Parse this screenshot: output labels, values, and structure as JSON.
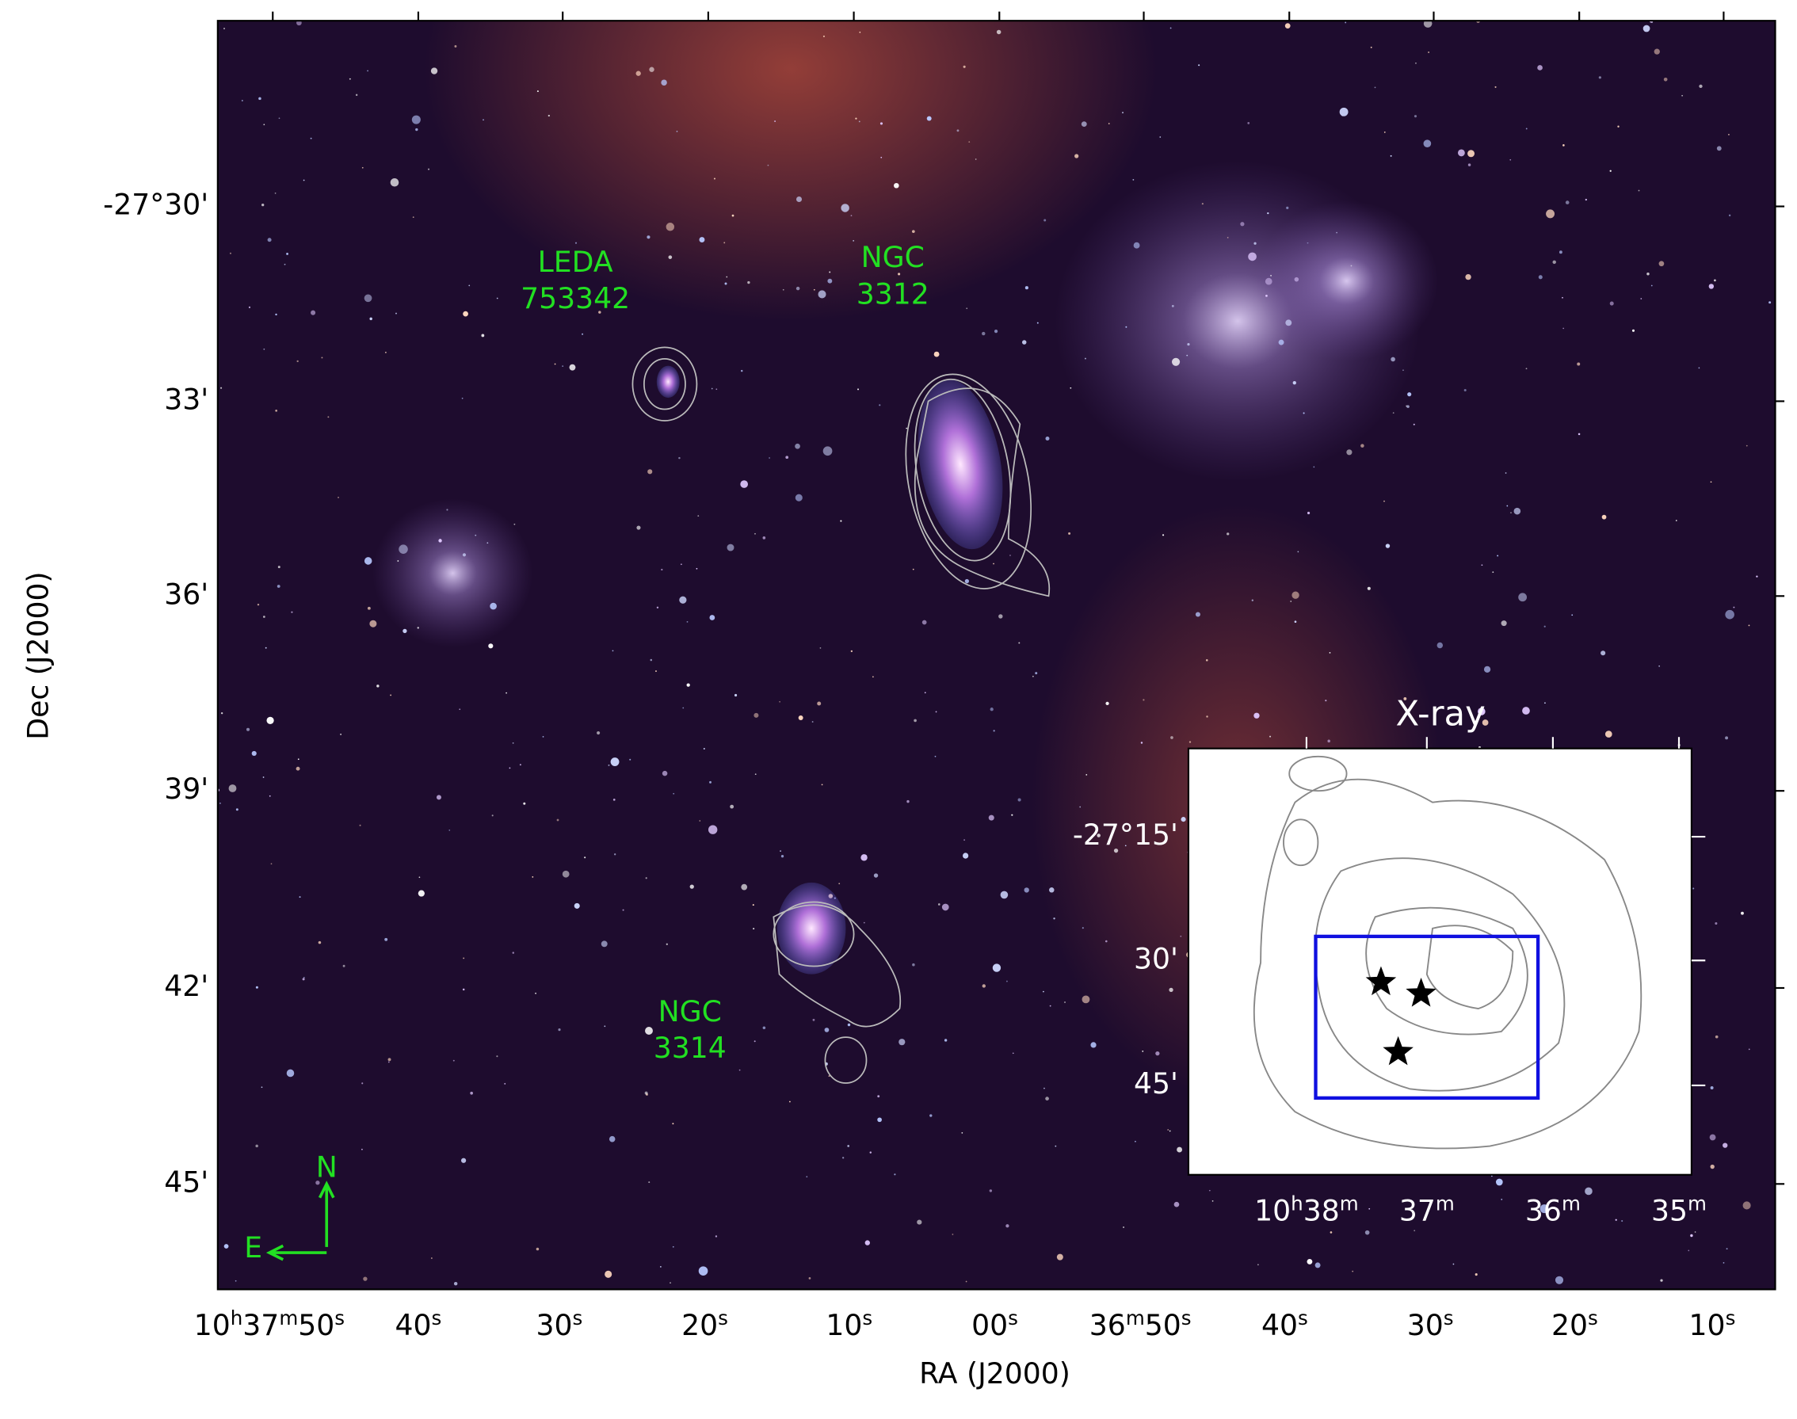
{
  "axes": {
    "x_label": "RA (J2000)",
    "y_label": "Dec (J2000)",
    "x_ticks": [
      [
        "10",
        "h",
        "37",
        "m",
        "50",
        "s"
      ],
      [
        "40",
        "s"
      ],
      [
        "30",
        "s"
      ],
      [
        "20",
        "s"
      ],
      [
        "10",
        "s"
      ],
      [
        "00",
        "s"
      ],
      [
        "36",
        "m",
        "50",
        "s"
      ],
      [
        "40",
        "s"
      ],
      [
        "30",
        "s"
      ],
      [
        "20",
        "s"
      ],
      [
        "10",
        "s"
      ]
    ],
    "y_ticks": [
      "-27°30'",
      "33'",
      "36'",
      "39'",
      "42'",
      "45'"
    ]
  },
  "annotations": [
    {
      "lines": [
        "LEDA",
        "753342"
      ]
    },
    {
      "lines": [
        "NGC",
        "3312"
      ]
    },
    {
      "lines": [
        "NGC",
        "3314"
      ]
    }
  ],
  "compass": {
    "north": "N",
    "east": "E"
  },
  "inset": {
    "title": "X-ray",
    "y_ticks": [
      "-27°15'",
      "30'",
      "45'"
    ],
    "x_ticks": [
      [
        "10",
        "h",
        "38",
        "m"
      ],
      [
        "37",
        "m"
      ],
      [
        "36",
        "m"
      ],
      [
        "35",
        "m"
      ]
    ]
  }
}
